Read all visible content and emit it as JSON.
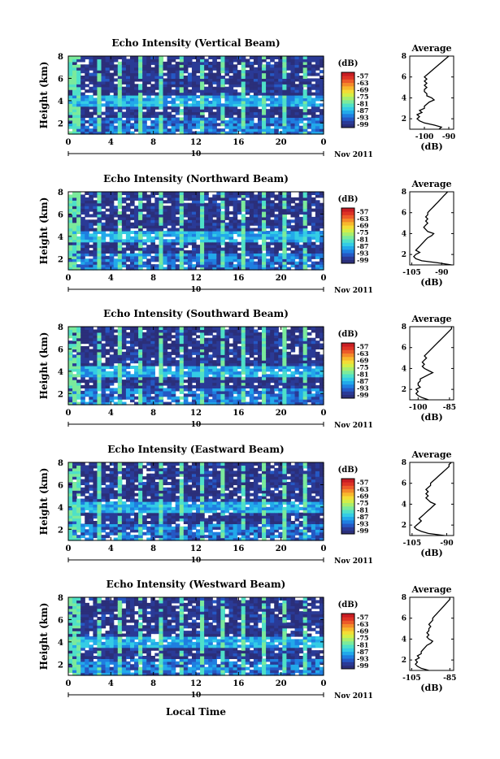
{
  "figure": {
    "xlabel": "Local Time",
    "date_label": "Nov 2011",
    "day_label": "10"
  },
  "colorbar": {
    "unit": "(dB)",
    "ticks": [
      "-57",
      "-63",
      "-69",
      "-75",
      "-81",
      "-87",
      "-93",
      "-99"
    ],
    "colors": [
      "#2b2f7a",
      "#2a3a96",
      "#2558c4",
      "#1f7ee0",
      "#22a9ea",
      "#34cce5",
      "#4fe0c8",
      "#7bea9c",
      "#a8ee6e",
      "#d3ee48",
      "#f3dd36",
      "#f7b82d",
      "#f48a2a",
      "#ec5b29",
      "#dd3326",
      "#c81d23"
    ]
  },
  "chart_data": [
    {
      "type": "heatmap",
      "title": "Echo Intensity (Vertical Beam)",
      "ylabel": "Height (km)",
      "xlim": [
        0,
        24
      ],
      "ylim": [
        1,
        8
      ],
      "xticks": [
        "0",
        "4",
        "8",
        "12",
        "16",
        "20",
        "0"
      ],
      "yticks": [
        "2",
        "4",
        "6",
        "8"
      ],
      "avg_title": "Average",
      "avg_xlabel": "(dB)",
      "avg_xlim": [
        -106,
        -88
      ],
      "avg_xticks": [
        -100,
        -90
      ],
      "avg_xtick_labels": [
        "-100",
        "-90"
      ],
      "avg_profile": [
        [
          -94,
          1.0
        ],
        [
          -93,
          1.2
        ],
        [
          -96,
          1.4
        ],
        [
          -100,
          1.6
        ],
        [
          -102,
          1.8
        ],
        [
          -103,
          2.0
        ],
        [
          -102,
          2.2
        ],
        [
          -103,
          2.4
        ],
        [
          -101,
          2.6
        ],
        [
          -102,
          2.8
        ],
        [
          -100,
          3.0
        ],
        [
          -100,
          3.2
        ],
        [
          -99,
          3.4
        ],
        [
          -98,
          3.6
        ],
        [
          -96,
          3.8
        ],
        [
          -97,
          4.0
        ],
        [
          -99,
          4.2
        ],
        [
          -99,
          4.4
        ],
        [
          -100,
          4.6
        ],
        [
          -100,
          4.8
        ],
        [
          -99,
          5.0
        ],
        [
          -100,
          5.2
        ],
        [
          -99,
          5.4
        ],
        [
          -100,
          5.6
        ],
        [
          -99,
          5.8
        ],
        [
          -100,
          6.0
        ],
        [
          -99,
          6.2
        ],
        [
          -98,
          6.4
        ],
        [
          -97,
          6.6
        ],
        [
          -96,
          6.8
        ],
        [
          -95,
          7.0
        ],
        [
          -94,
          7.2
        ],
        [
          -93,
          7.4
        ],
        [
          -92,
          7.6
        ],
        [
          -91,
          7.8
        ],
        [
          -90,
          8.0
        ]
      ]
    },
    {
      "type": "heatmap",
      "title": "Echo Intensity (Northward Beam)",
      "ylabel": "Height (km)",
      "xlim": [
        0,
        24
      ],
      "ylim": [
        1,
        8
      ],
      "xticks": [
        "0",
        "4",
        "8",
        "12",
        "16",
        "20",
        "0"
      ],
      "yticks": [
        "2",
        "4",
        "6",
        "8"
      ],
      "avg_title": "Average",
      "avg_xlabel": "(dB)",
      "avg_xlim": [
        -106,
        -84
      ],
      "avg_xticks": [
        -105,
        -90
      ],
      "avg_xtick_labels": [
        "-105",
        "-90"
      ],
      "avg_profile": [
        [
          -85,
          1.0
        ],
        [
          -92,
          1.2
        ],
        [
          -100,
          1.4
        ],
        [
          -103,
          1.6
        ],
        [
          -104,
          1.8
        ],
        [
          -103,
          2.0
        ],
        [
          -101,
          2.2
        ],
        [
          -103,
          2.4
        ],
        [
          -102,
          2.6
        ],
        [
          -101,
          2.8
        ],
        [
          -100,
          3.0
        ],
        [
          -99,
          3.2
        ],
        [
          -98,
          3.4
        ],
        [
          -97,
          3.6
        ],
        [
          -95,
          3.8
        ],
        [
          -94,
          4.0
        ],
        [
          -97,
          4.2
        ],
        [
          -98,
          4.4
        ],
        [
          -99,
          4.6
        ],
        [
          -98,
          4.8
        ],
        [
          -97,
          5.0
        ],
        [
          -98,
          5.2
        ],
        [
          -97,
          5.4
        ],
        [
          -98,
          5.6
        ],
        [
          -97,
          5.8
        ],
        [
          -97,
          6.0
        ],
        [
          -96,
          6.2
        ],
        [
          -95,
          6.4
        ],
        [
          -94,
          6.6
        ],
        [
          -93,
          6.8
        ],
        [
          -92,
          7.0
        ],
        [
          -91,
          7.2
        ],
        [
          -90,
          7.4
        ],
        [
          -89,
          7.6
        ],
        [
          -88,
          7.8
        ],
        [
          -87,
          8.0
        ]
      ]
    },
    {
      "type": "heatmap",
      "title": "Echo Intensity (Southward Beam)",
      "ylabel": "Height (km)",
      "xlim": [
        0,
        24
      ],
      "ylim": [
        1,
        8
      ],
      "xticks": [
        "0",
        "4",
        "8",
        "12",
        "16",
        "20",
        "0"
      ],
      "yticks": [
        "2",
        "4",
        "6",
        "8"
      ],
      "avg_title": "Average",
      "avg_xlabel": "(dB)",
      "avg_xlim": [
        -104,
        -83
      ],
      "avg_xticks": [
        -100,
        -85
      ],
      "avg_xtick_labels": [
        "-100",
        "-85"
      ],
      "avg_profile": [
        [
          -95,
          1.0
        ],
        [
          -98,
          1.2
        ],
        [
          -100,
          1.4
        ],
        [
          -101,
          1.6
        ],
        [
          -100,
          1.8
        ],
        [
          -101,
          2.0
        ],
        [
          -99,
          2.2
        ],
        [
          -100,
          2.4
        ],
        [
          -100,
          2.6
        ],
        [
          -99,
          2.8
        ],
        [
          -99,
          3.0
        ],
        [
          -97,
          3.2
        ],
        [
          -95,
          3.4
        ],
        [
          -93,
          3.6
        ],
        [
          -95,
          3.8
        ],
        [
          -97,
          4.0
        ],
        [
          -98,
          4.2
        ],
        [
          -97,
          4.4
        ],
        [
          -98,
          4.6
        ],
        [
          -97,
          4.8
        ],
        [
          -96,
          5.0
        ],
        [
          -97,
          5.2
        ],
        [
          -96,
          5.4
        ],
        [
          -95,
          5.6
        ],
        [
          -94,
          5.8
        ],
        [
          -93,
          6.0
        ],
        [
          -92,
          6.2
        ],
        [
          -91,
          6.4
        ],
        [
          -90,
          6.6
        ],
        [
          -89,
          6.8
        ],
        [
          -88,
          7.0
        ],
        [
          -87,
          7.2
        ],
        [
          -86,
          7.4
        ],
        [
          -85,
          7.6
        ],
        [
          -84,
          7.8
        ],
        [
          -84,
          8.0
        ]
      ]
    },
    {
      "type": "heatmap",
      "title": "Echo Intensity (Eastward Beam)",
      "ylabel": "Height (km)",
      "xlim": [
        0,
        24
      ],
      "ylim": [
        1,
        8
      ],
      "xticks": [
        "0",
        "4",
        "8",
        "12",
        "16",
        "20",
        "0"
      ],
      "yticks": [
        "2",
        "4",
        "6",
        "8"
      ],
      "avg_title": "Average",
      "avg_xlabel": "(dB)",
      "avg_xlim": [
        -106,
        -87
      ],
      "avg_xticks": [
        -105,
        -90
      ],
      "avg_xtick_labels": [
        "-105",
        "-90"
      ],
      "avg_profile": [
        [
          -91,
          1.0
        ],
        [
          -98,
          1.2
        ],
        [
          -101,
          1.4
        ],
        [
          -103,
          1.6
        ],
        [
          -104,
          1.8
        ],
        [
          -103,
          2.0
        ],
        [
          -102,
          2.2
        ],
        [
          -101,
          2.4
        ],
        [
          -102,
          2.6
        ],
        [
          -101,
          2.8
        ],
        [
          -100,
          3.0
        ],
        [
          -99,
          3.2
        ],
        [
          -98,
          3.4
        ],
        [
          -97,
          3.6
        ],
        [
          -96,
          3.8
        ],
        [
          -95,
          4.0
        ],
        [
          -97,
          4.2
        ],
        [
          -98,
          4.4
        ],
        [
          -99,
          4.6
        ],
        [
          -98,
          4.8
        ],
        [
          -99,
          5.0
        ],
        [
          -98,
          5.2
        ],
        [
          -99,
          5.4
        ],
        [
          -98,
          5.6
        ],
        [
          -97,
          5.8
        ],
        [
          -97,
          6.0
        ],
        [
          -96,
          6.2
        ],
        [
          -95,
          6.4
        ],
        [
          -94,
          6.6
        ],
        [
          -93,
          6.8
        ],
        [
          -92,
          7.0
        ],
        [
          -91,
          7.2
        ],
        [
          -90,
          7.4
        ],
        [
          -89,
          7.6
        ],
        [
          -89,
          7.8
        ],
        [
          -88,
          8.0
        ]
      ]
    },
    {
      "type": "heatmap",
      "title": "Echo Intensity (Westward Beam)",
      "ylabel": "Height (km)",
      "xlim": [
        0,
        24
      ],
      "ylim": [
        1,
        8
      ],
      "xticks": [
        "0",
        "4",
        "8",
        "12",
        "16",
        "20",
        "0"
      ],
      "yticks": [
        "2",
        "4",
        "6",
        "8"
      ],
      "avg_title": "Average",
      "avg_xlabel": "(dB)",
      "avg_xlim": [
        -106,
        -83
      ],
      "avg_xticks": [
        -105,
        -85
      ],
      "avg_xtick_labels": [
        "-105",
        "-85"
      ],
      "avg_profile": [
        [
          -96,
          1.0
        ],
        [
          -100,
          1.2
        ],
        [
          -102,
          1.4
        ],
        [
          -103,
          1.6
        ],
        [
          -102,
          1.8
        ],
        [
          -103,
          2.0
        ],
        [
          -101,
          2.2
        ],
        [
          -102,
          2.4
        ],
        [
          -100,
          2.6
        ],
        [
          -100,
          2.8
        ],
        [
          -99,
          3.0
        ],
        [
          -98,
          3.2
        ],
        [
          -97,
          3.4
        ],
        [
          -95,
          3.6
        ],
        [
          -94,
          3.8
        ],
        [
          -96,
          4.0
        ],
        [
          -97,
          4.2
        ],
        [
          -96,
          4.4
        ],
        [
          -97,
          4.6
        ],
        [
          -96,
          4.8
        ],
        [
          -96,
          5.0
        ],
        [
          -95,
          5.2
        ],
        [
          -96,
          5.4
        ],
        [
          -95,
          5.6
        ],
        [
          -94,
          5.8
        ],
        [
          -94,
          6.0
        ],
        [
          -93,
          6.2
        ],
        [
          -92,
          6.4
        ],
        [
          -91,
          6.6
        ],
        [
          -90,
          6.8
        ],
        [
          -89,
          7.0
        ],
        [
          -88,
          7.2
        ],
        [
          -87,
          7.4
        ],
        [
          -86,
          7.6
        ],
        [
          -85,
          7.8
        ],
        [
          -85,
          8.0
        ]
      ]
    }
  ]
}
